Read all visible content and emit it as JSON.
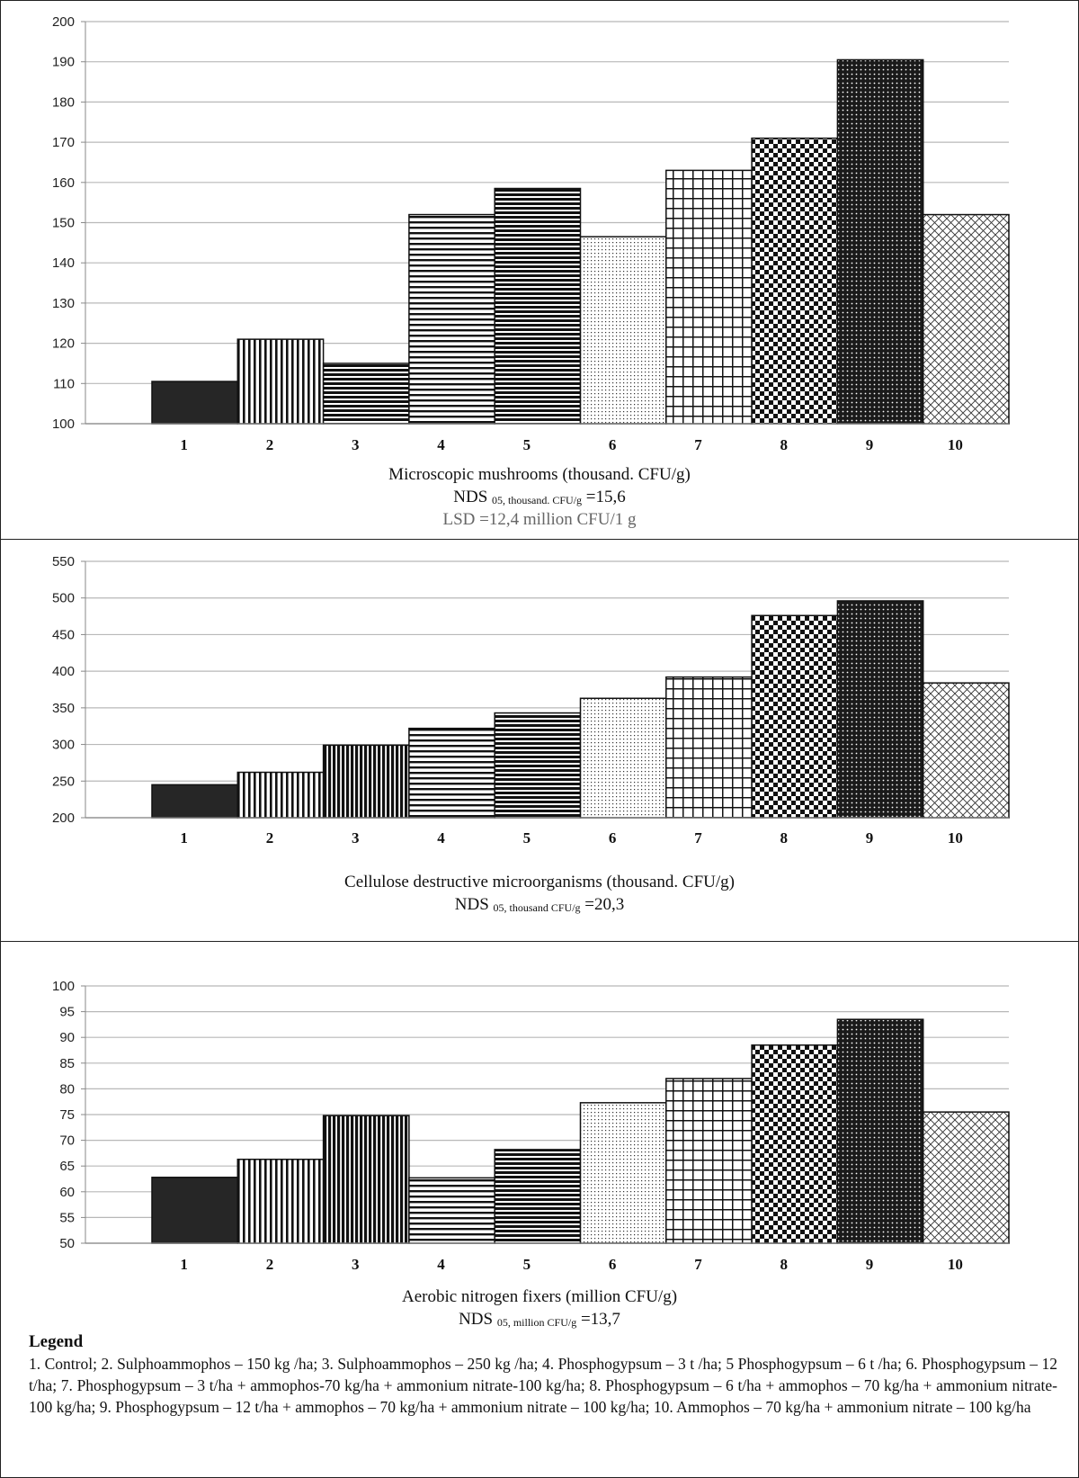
{
  "chart_data": [
    {
      "type": "bar",
      "categories": [
        "1",
        "2",
        "3",
        "4",
        "5",
        "6",
        "7",
        "8",
        "9",
        "10"
      ],
      "values": [
        110.5,
        121,
        115,
        152,
        158.5,
        146.5,
        163,
        171,
        190.5,
        152
      ],
      "patterns": [
        "solid",
        "vlines",
        "hlines-dense",
        "hlines",
        "hlines-dense",
        "dots",
        "grid",
        "checker",
        "dark-dots",
        "crosshatch"
      ],
      "ylim": [
        100,
        200
      ],
      "yticks": [
        100,
        110,
        120,
        130,
        140,
        150,
        160,
        170,
        180,
        190,
        200
      ],
      "grid": true,
      "xlabel": "Microscopic mushrooms (thousand. CFU/g)",
      "nds_prefix": "NDS",
      "nds_sub": "05, thousand. CFU/g",
      "nds_value": "=15,6",
      "lsd": "LSD =12,4 million CFU/1 g"
    },
    {
      "type": "bar",
      "categories": [
        "1",
        "2",
        "3",
        "4",
        "5",
        "6",
        "7",
        "8",
        "9",
        "10"
      ],
      "values": [
        245,
        262,
        299,
        322,
        343,
        363,
        392,
        476,
        496,
        384
      ],
      "patterns": [
        "solid",
        "vlines",
        "vlines-dark",
        "hlines",
        "hlines-dense",
        "dots",
        "grid",
        "checker",
        "dark-dots",
        "crosshatch"
      ],
      "ylim": [
        200,
        550
      ],
      "yticks": [
        200,
        250,
        300,
        350,
        400,
        450,
        500,
        550
      ],
      "grid": true,
      "xlabel": "Cellulose destructive microorganisms (thousand. CFU/g)",
      "nds_prefix": "NDS",
      "nds_sub": "05, thousand CFU/g",
      "nds_value": "=20,3"
    },
    {
      "type": "bar",
      "categories": [
        "1",
        "2",
        "3",
        "4",
        "5",
        "6",
        "7",
        "8",
        "9",
        "10"
      ],
      "values": [
        62.8,
        66.3,
        74.8,
        62.7,
        68.2,
        77.3,
        82,
        88.5,
        93.5,
        75.5
      ],
      "patterns": [
        "solid",
        "vlines",
        "vlines-dark",
        "hlines",
        "hlines-dense",
        "dots",
        "grid",
        "checker",
        "dark-dots",
        "crosshatch"
      ],
      "ylim": [
        50,
        100
      ],
      "yticks": [
        50,
        55,
        60,
        65,
        70,
        75,
        80,
        85,
        90,
        95,
        100
      ],
      "grid": true,
      "xlabel": "Aerobic nitrogen fixers (million CFU/g)",
      "nds_prefix": "NDS",
      "nds_sub": "05, million CFU/g",
      "nds_value": "=13,7"
    }
  ],
  "legend": {
    "title": "Legend",
    "text": "1. Control; 2. Sulphoammophos – 150 kg /ha; 3. Sulphoammophos – 250 kg /ha; 4. Phosphogypsum – 3 t /ha; 5 Phosphogypsum – 6 t /ha; 6. Phosphogypsum – 12 t/ha; 7. Phosphogypsum – 3 t/ha + ammophos-70 kg/ha + ammonium nitrate-100 kg/ha; 8. Phosphogypsum – 6 t/ha + ammophos – 70 kg/ha + ammonium nitrate-100 kg/ha; 9. Phosphogypsum – 12 t/ha + ammophos – 70 kg/ha + ammonium nitrate – 100 kg/ha; 10. Ammophos – 70 kg/ha + ammonium nitrate – 100 kg/ha"
  }
}
